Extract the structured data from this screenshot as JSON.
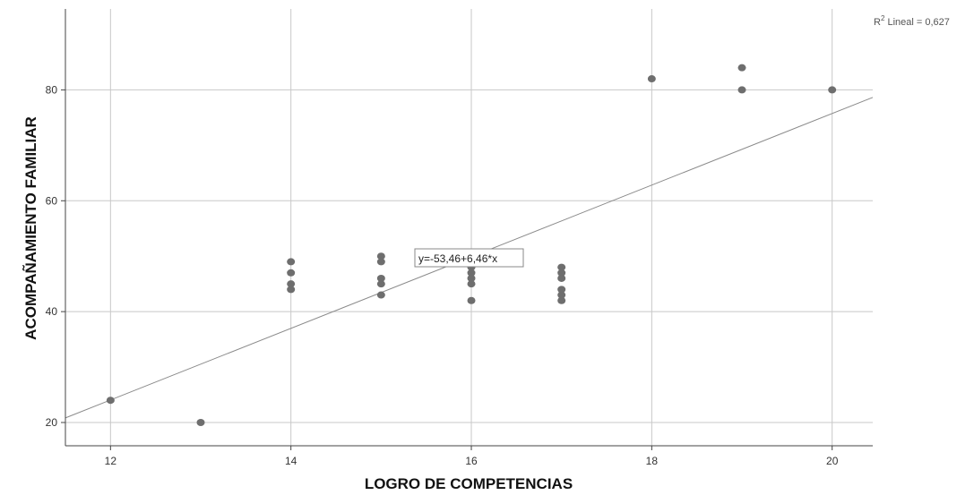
{
  "chart_data": {
    "type": "scatter",
    "xlabel": "LOGRO DE COMPETENCIAS",
    "ylabel": "ACOMPAÑAMIENTO FAMILIAR",
    "xlim": [
      11.5,
      20.45
    ],
    "ylim": [
      15.8,
      94.6
    ],
    "x_ticks": [
      12,
      14,
      16,
      18,
      20
    ],
    "y_ticks": [
      20,
      40,
      60,
      80
    ],
    "grid": true,
    "points": [
      {
        "x": 12,
        "y": 24
      },
      {
        "x": 13,
        "y": 20
      },
      {
        "x": 14,
        "y": 49
      },
      {
        "x": 14,
        "y": 47
      },
      {
        "x": 14,
        "y": 45
      },
      {
        "x": 14,
        "y": 44
      },
      {
        "x": 15,
        "y": 50
      },
      {
        "x": 15,
        "y": 49
      },
      {
        "x": 15,
        "y": 46
      },
      {
        "x": 15,
        "y": 45
      },
      {
        "x": 15,
        "y": 43
      },
      {
        "x": 16,
        "y": 48
      },
      {
        "x": 16,
        "y": 47
      },
      {
        "x": 16,
        "y": 46
      },
      {
        "x": 16,
        "y": 45
      },
      {
        "x": 16,
        "y": 42
      },
      {
        "x": 17,
        "y": 48
      },
      {
        "x": 17,
        "y": 47
      },
      {
        "x": 17,
        "y": 46
      },
      {
        "x": 17,
        "y": 44
      },
      {
        "x": 17,
        "y": 43
      },
      {
        "x": 17,
        "y": 42
      },
      {
        "x": 18,
        "y": 82
      },
      {
        "x": 19,
        "y": 84
      },
      {
        "x": 19,
        "y": 80
      },
      {
        "x": 20,
        "y": 80
      }
    ],
    "fit_line": {
      "intercept": -53.46,
      "slope": 6.46
    },
    "equation_label": "y=-53,46+6,46*x",
    "r2_prefix": "R",
    "r2_sup": "2",
    "r2_suffix": " Lineal = 0,627",
    "colors": {
      "points": "#6e6e6e",
      "line": "#8a8a8a",
      "grid": "#c8c8c8",
      "axis": "#444444"
    }
  }
}
